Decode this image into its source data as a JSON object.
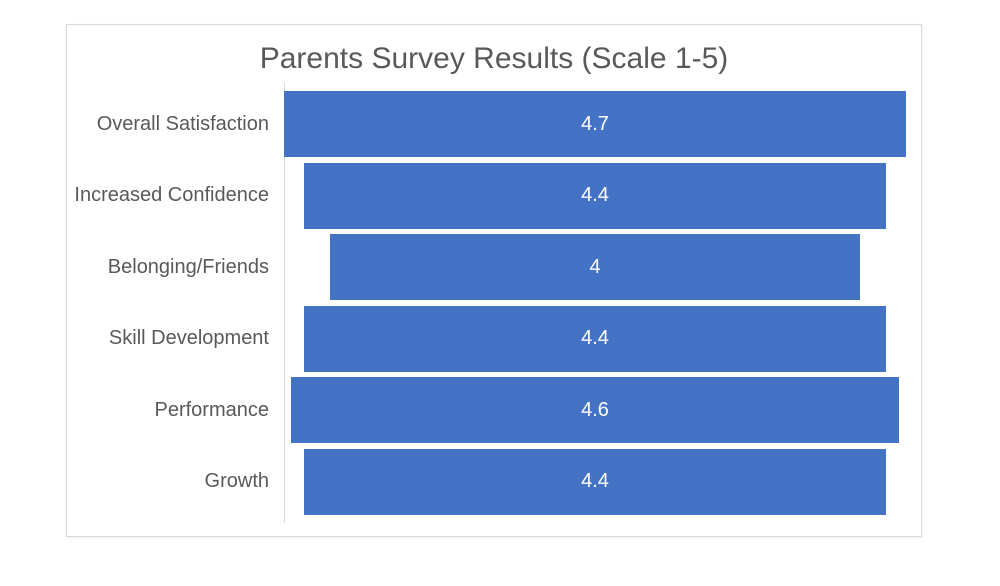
{
  "chart_data": {
    "type": "bar",
    "subtype": "funnel-centered",
    "orientation": "horizontal",
    "title": "Parents Survey Results (Scale 1-5)",
    "categories": [
      "Overall Satisfaction",
      "Increased Confidence",
      "Belonging/Friends",
      "Skill Development",
      "Performance",
      "Growth"
    ],
    "values": [
      4.7,
      4.4,
      4,
      4.4,
      4.6,
      4.4
    ],
    "value_labels": [
      "4.7",
      "4.4",
      "4",
      "4.4",
      "4.6",
      "4.4"
    ],
    "value_range": [
      0,
      4.7
    ],
    "xlabel": "",
    "ylabel": "",
    "legend": "none",
    "grid": false,
    "bar_alignment": "center",
    "data_label_position": "center",
    "colors": {
      "bar": "#4472C4",
      "title_text": "#595959",
      "category_text": "#595959",
      "value_text": "#FFFFFF",
      "axis_line": "#D9D9D9",
      "chart_border": "#D9D9D9",
      "background": "#FFFFFF"
    }
  }
}
